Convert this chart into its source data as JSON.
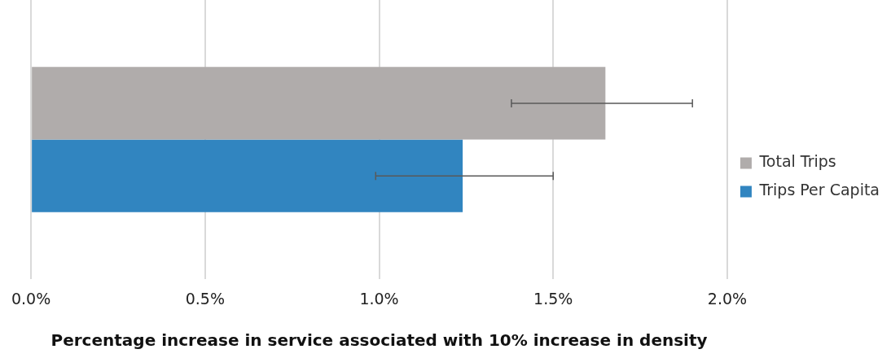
{
  "chart_data": {
    "type": "bar",
    "orientation": "horizontal",
    "xlabel": "Percentage increase in service associated with 10% increase in density",
    "categories": [
      null
    ],
    "series": [
      {
        "name": "Total Trips",
        "color": "#b0acab",
        "values": [
          1.65
        ],
        "errors": [
          [
            1.38,
            1.9
          ]
        ]
      },
      {
        "name": "Trips Per Capita",
        "color": "#3185c0",
        "values": [
          1.24
        ],
        "errors": [
          [
            0.99,
            1.5
          ]
        ]
      }
    ],
    "xlim": [
      0,
      2
    ],
    "xticks": [
      {
        "value": 0,
        "label": "0.0%"
      },
      {
        "value": 0.5,
        "label": "0.5%"
      },
      {
        "value": 1,
        "label": "1.0%"
      },
      {
        "value": 1.5,
        "label": "1.5%"
      },
      {
        "value": 2,
        "label": "2.0%"
      }
    ],
    "grid": "x",
    "legend": "right"
  }
}
